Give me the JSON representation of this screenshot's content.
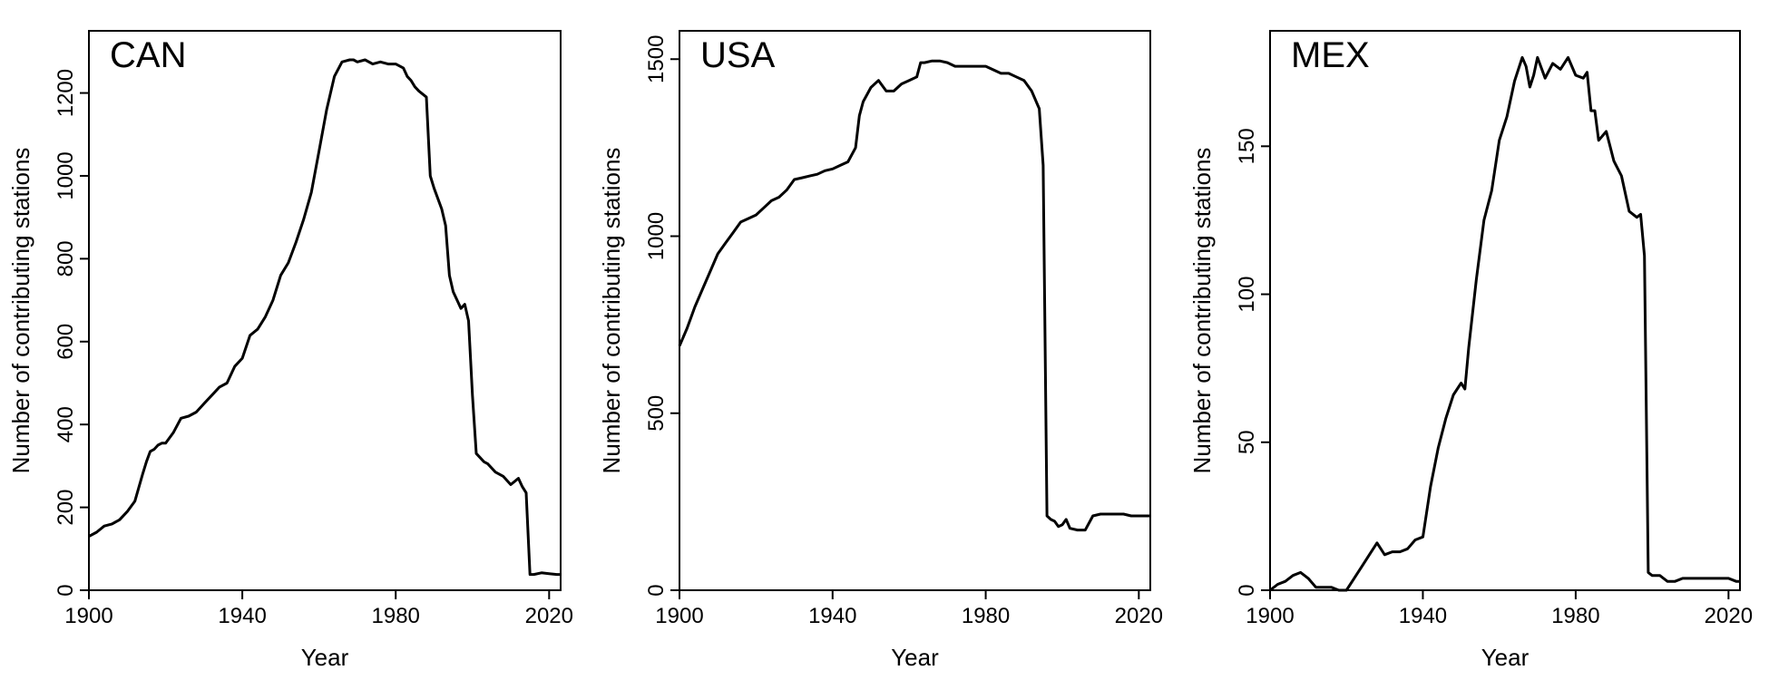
{
  "chart_data": [
    {
      "type": "line",
      "title": "CAN",
      "xlabel": "Year",
      "ylabel": "Number of contributing stations",
      "xlim": [
        1900,
        2023
      ],
      "ylim": [
        0,
        1350
      ],
      "xticks": [
        1900,
        1940,
        1980,
        2020
      ],
      "yticks": [
        0,
        200,
        400,
        600,
        800,
        1000,
        1200
      ],
      "series": [
        {
          "x": [
            1900,
            1902,
            1904,
            1906,
            1908,
            1910,
            1912,
            1914,
            1915,
            1916,
            1917,
            1918,
            1919,
            1920,
            1922,
            1924,
            1926,
            1928,
            1930,
            1932,
            1934,
            1936,
            1938,
            1940,
            1942,
            1944,
            1946,
            1948,
            1950,
            1952,
            1954,
            1956,
            1958,
            1960,
            1962,
            1964,
            1966,
            1968,
            1969,
            1970,
            1972,
            1974,
            1976,
            1978,
            1980,
            1982,
            1983,
            1984,
            1985,
            1986,
            1988,
            1989,
            1990,
            1992,
            1993,
            1994,
            1995,
            1996,
            1997,
            1998,
            1999,
            2000,
            2001,
            2002,
            2003,
            2004,
            2006,
            2008,
            2010,
            2012,
            2013,
            2014,
            2015,
            2016,
            2018,
            2020,
            2022,
            2023
          ],
          "y": [
            130,
            140,
            155,
            160,
            170,
            190,
            215,
            280,
            310,
            335,
            340,
            350,
            355,
            355,
            380,
            415,
            420,
            430,
            450,
            470,
            490,
            500,
            540,
            560,
            615,
            630,
            660,
            700,
            760,
            790,
            840,
            895,
            960,
            1060,
            1160,
            1240,
            1275,
            1280,
            1280,
            1275,
            1280,
            1270,
            1275,
            1270,
            1270,
            1260,
            1240,
            1230,
            1215,
            1205,
            1190,
            1000,
            970,
            920,
            880,
            760,
            720,
            700,
            680,
            690,
            650,
            470,
            330,
            320,
            310,
            305,
            285,
            275,
            255,
            270,
            250,
            235,
            38,
            38,
            42,
            40,
            38,
            38
          ]
        }
      ]
    },
    {
      "type": "line",
      "title": "USA",
      "xlabel": "Year",
      "ylabel": "Number of contributing stations",
      "xlim": [
        1900,
        2023
      ],
      "ylim": [
        0,
        1580
      ],
      "xticks": [
        1900,
        1940,
        1980,
        2020
      ],
      "yticks": [
        0,
        500,
        1000,
        1500
      ],
      "series": [
        {
          "x": [
            1900,
            1902,
            1904,
            1906,
            1908,
            1910,
            1912,
            1914,
            1916,
            1918,
            1920,
            1922,
            1924,
            1926,
            1928,
            1930,
            1932,
            1934,
            1936,
            1938,
            1940,
            1942,
            1944,
            1946,
            1947,
            1948,
            1950,
            1952,
            1954,
            1956,
            1958,
            1960,
            1962,
            1963,
            1964,
            1966,
            1968,
            1970,
            1972,
            1974,
            1976,
            1978,
            1980,
            1982,
            1984,
            1986,
            1988,
            1990,
            1992,
            1994,
            1995,
            1996,
            1997,
            1998,
            1999,
            2000,
            2001,
            2002,
            2004,
            2006,
            2008,
            2010,
            2012,
            2014,
            2016,
            2018,
            2020,
            2022,
            2023
          ],
          "y": [
            690,
            740,
            800,
            850,
            900,
            950,
            980,
            1010,
            1040,
            1050,
            1060,
            1080,
            1100,
            1110,
            1130,
            1160,
            1165,
            1170,
            1175,
            1185,
            1190,
            1200,
            1210,
            1250,
            1340,
            1380,
            1420,
            1440,
            1410,
            1410,
            1430,
            1440,
            1450,
            1490,
            1490,
            1495,
            1495,
            1490,
            1480,
            1480,
            1480,
            1480,
            1480,
            1470,
            1460,
            1460,
            1450,
            1440,
            1410,
            1360,
            1200,
            210,
            200,
            195,
            180,
            185,
            200,
            175,
            170,
            170,
            210,
            215,
            215,
            215,
            215,
            210,
            210,
            210,
            210
          ]
        }
      ]
    },
    {
      "type": "line",
      "title": "MEX",
      "xlabel": "Year",
      "ylabel": "Number of contributing stations",
      "xlim": [
        1900,
        2023
      ],
      "ylim": [
        0,
        189
      ],
      "xticks": [
        1900,
        1940,
        1980,
        2020
      ],
      "yticks": [
        0,
        50,
        100,
        150
      ],
      "series": [
        {
          "x": [
            1900,
            1902,
            1904,
            1906,
            1908,
            1910,
            1912,
            1914,
            1916,
            1918,
            1920,
            1922,
            1924,
            1926,
            1928,
            1930,
            1932,
            1934,
            1936,
            1938,
            1940,
            1942,
            1944,
            1946,
            1948,
            1950,
            1951,
            1952,
            1954,
            1956,
            1958,
            1960,
            1962,
            1964,
            1966,
            1967,
            1968,
            1969,
            1970,
            1972,
            1974,
            1976,
            1978,
            1980,
            1982,
            1983,
            1984,
            1985,
            1986,
            1988,
            1989,
            1990,
            1992,
            1994,
            1996,
            1997,
            1998,
            1999,
            2000,
            2002,
            2004,
            2006,
            2008,
            2010,
            2012,
            2014,
            2016,
            2018,
            2020,
            2022,
            2023
          ],
          "y": [
            0,
            2,
            3,
            5,
            6,
            4,
            1,
            1,
            1,
            0,
            0,
            4,
            8,
            12,
            16,
            12,
            13,
            13,
            14,
            17,
            18,
            35,
            48,
            58,
            66,
            70,
            68,
            82,
            105,
            125,
            135,
            152,
            160,
            172,
            180,
            177,
            170,
            174,
            180,
            173,
            178,
            176,
            180,
            174,
            173,
            175,
            162,
            162,
            152,
            155,
            150,
            145,
            140,
            128,
            126,
            127,
            113,
            6,
            5,
            5,
            3,
            3,
            4,
            4,
            4,
            4,
            4,
            4,
            4,
            3,
            3
          ]
        }
      ]
    }
  ]
}
